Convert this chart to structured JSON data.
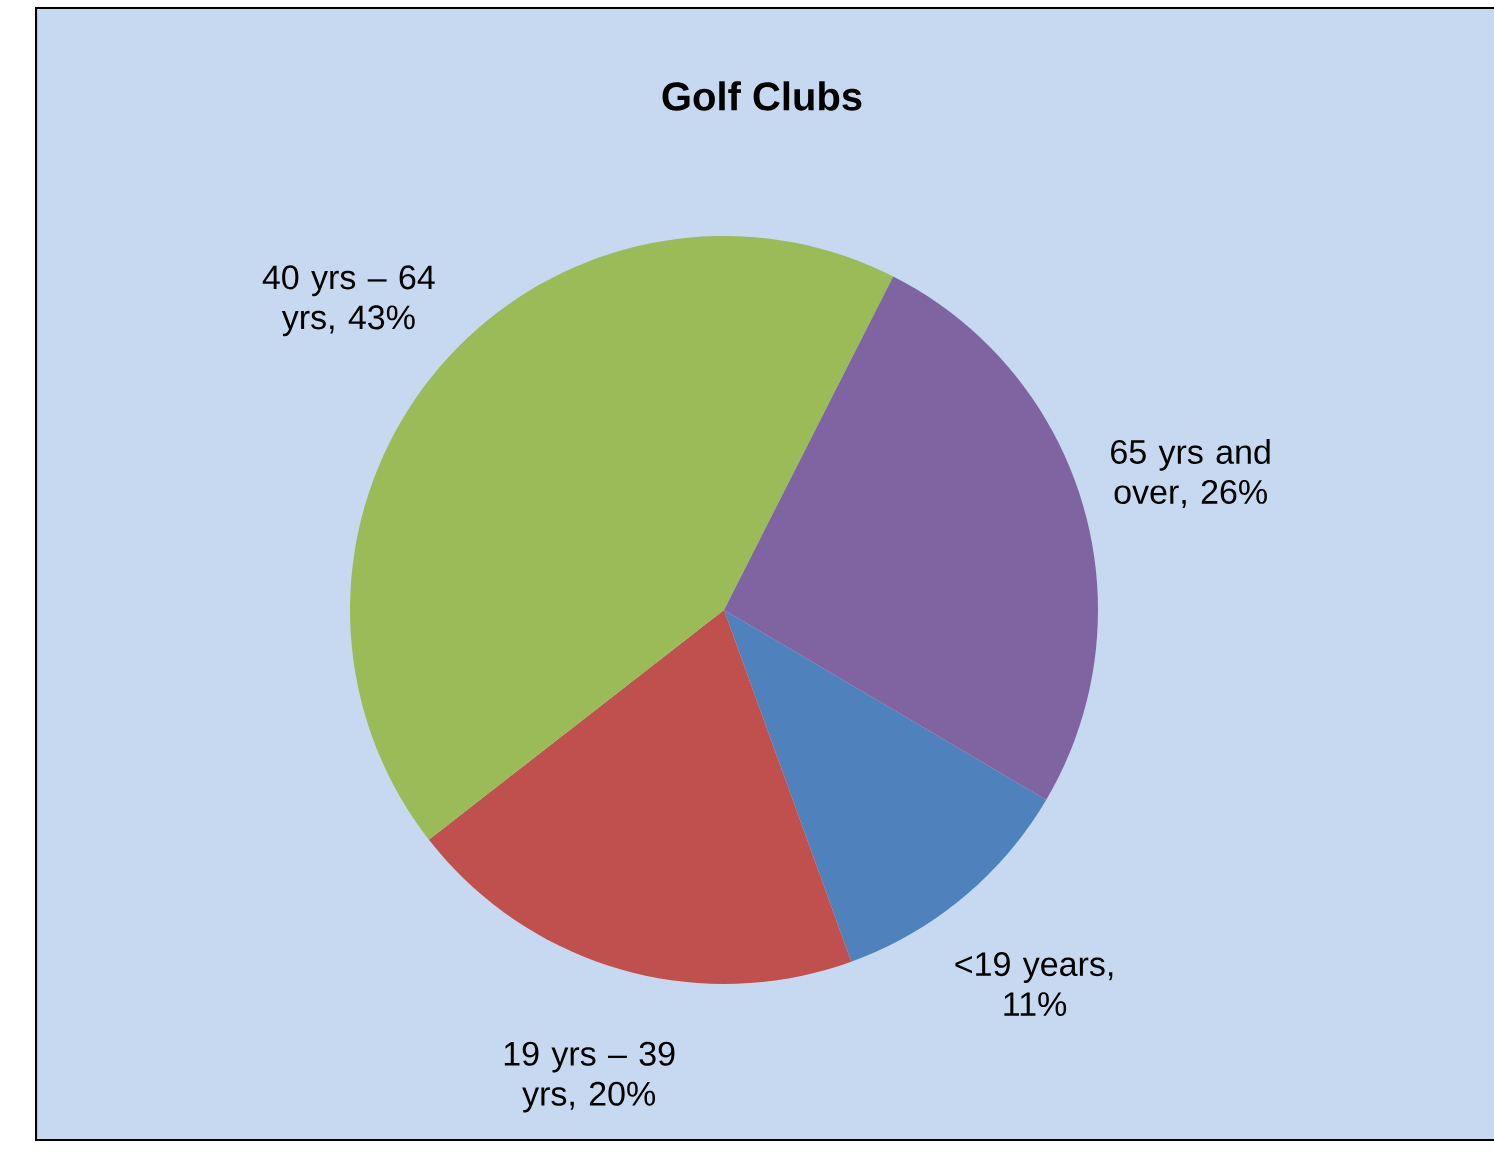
{
  "chart_data": {
    "type": "pie",
    "title": "Golf Clubs",
    "categories": [
      "<19 years",
      "19 yrs – 39 yrs",
      "40 yrs – 64 yrs",
      "65 yrs and over"
    ],
    "values": [
      11,
      20,
      43,
      26
    ],
    "value_labels": [
      ", 11%",
      ", 20%",
      ", 43%",
      ", 26%"
    ],
    "colors": [
      "#4f81bd",
      "#c0504d",
      "#9bbb59",
      "#8064a2"
    ]
  }
}
